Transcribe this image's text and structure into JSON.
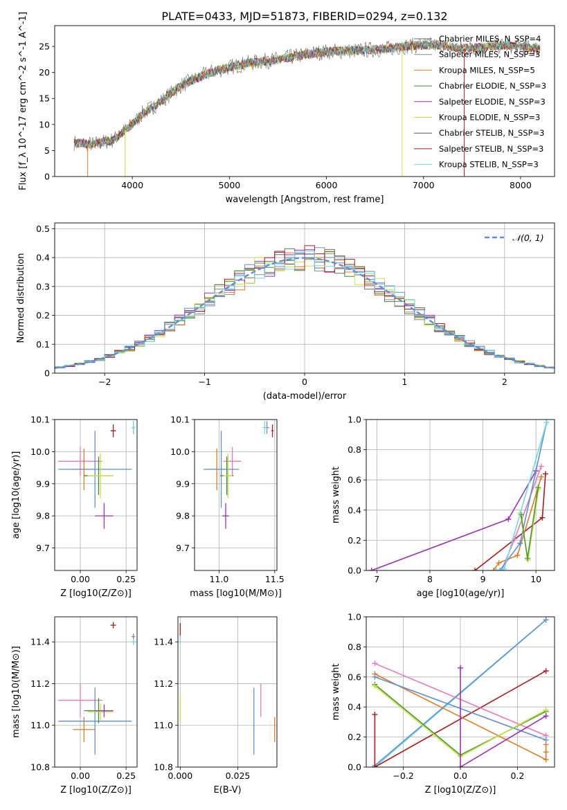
{
  "figure_title": "PLATE=0433, MJD=51873, FIBERID=0294, z=0.132",
  "colors": {
    "chabrier_miles": "#6a6a6a",
    "salpeter_miles": "#8a8a8a",
    "kroupa_miles": "#e07a20",
    "chabrier_elodie": "#3b8a3b",
    "salpeter_elodie": "#9a2fb0",
    "kroupa_elodie": "#c8e040",
    "chabrier_stelib": "#555555",
    "salpeter_stelib": "#b01818",
    "kroupa_stelib": "#70d8e0",
    "normal_curve": "#5b8fd8",
    "extra_blue": "#5b8fd8",
    "extra_pink": "#e878b8",
    "extra_green": "#4a9a38"
  },
  "chart_data": [
    {
      "id": "spectrum",
      "type": "line",
      "xlabel": "wavelength [Angstrom, rest frame]",
      "ylabel": "Flux [f_λ 10^-17 erg cm^-2 s^-1 A^-1]",
      "xlim": [
        3200,
        8350
      ],
      "ylim": [
        0,
        29
      ],
      "xticks": [
        4000,
        5000,
        6000,
        7000,
        8000
      ],
      "yticks": [
        0,
        5,
        10,
        15,
        20,
        25
      ],
      "grid": false,
      "legend_position": "upper right",
      "series": [
        {
          "name": "Chabrier MILES, N_SSP=4"
        },
        {
          "name": "Salpeter MILES, N_SSP=3"
        },
        {
          "name": "Kroupa MILES, N_SSP=5"
        },
        {
          "name": "Chabrier ELODIE, N_SSP=3"
        },
        {
          "name": "Salpeter ELODIE, N_SSP=3"
        },
        {
          "name": "Kroupa ELODIE, N_SSP=3"
        },
        {
          "name": "Chabrier STELIB, N_SSP=3"
        },
        {
          "name": "Salpeter STELIB, N_SSP=3"
        },
        {
          "name": "Kroupa STELIB, N_SSP=3"
        }
      ],
      "continuum": {
        "x": [
          3400,
          3600,
          3800,
          4000,
          4100,
          4300,
          4500,
          4800,
          5000,
          5200,
          5500,
          5800,
          6000,
          6300,
          6600,
          6800,
          7000,
          7200,
          7400,
          7600,
          7800,
          8000,
          8200
        ],
        "y": [
          6.5,
          6.2,
          7.0,
          10.0,
          12.0,
          14.5,
          17.5,
          20.0,
          21.0,
          21.8,
          22.5,
          23.5,
          24.0,
          24.2,
          24.5,
          25.0,
          25.3,
          25.2,
          24.6,
          24.8,
          25.2,
          25.0,
          24.5
        ]
      },
      "x_range": [
        3400,
        8200
      ]
    },
    {
      "id": "residual_histogram",
      "type": "step",
      "xlabel": "(data-model)/error",
      "ylabel": "Normed distribution",
      "xlim": [
        -2.5,
        2.5
      ],
      "ylim": [
        0,
        0.52
      ],
      "xticks": [
        -2,
        -1,
        0,
        1,
        2
      ],
      "yticks": [
        0.0,
        0.1,
        0.2,
        0.3,
        0.4,
        0.5
      ],
      "grid": true,
      "legend_position": "upper right",
      "legend": "𝒩(0, 1)",
      "bin_width": 0.1,
      "bin_start": -2.5
    },
    {
      "id": "age_vs_Z",
      "type": "errorbar",
      "xlabel": "Z [log10(Z/Z⊙)]",
      "ylabel": "age  [log10(age/yr)]",
      "xlim": [
        -0.14,
        0.31
      ],
      "ylim": [
        9.63,
        10.1
      ],
      "xticks": [
        0.0,
        0.25
      ],
      "yticks": [
        9.7,
        9.8,
        9.9,
        10.0,
        10.1
      ],
      "grid": true,
      "points": [
        {
          "x": 0.29,
          "y": 10.075,
          "xerr": 0.01,
          "yerr": 0.02,
          "series": "Salpeter MILES"
        },
        {
          "x": 0.29,
          "y": 10.075,
          "xerr": 0.01,
          "yerr": 0.02,
          "series": "Kroupa STELIB"
        },
        {
          "x": 0.18,
          "y": 10.065,
          "xerr": 0.015,
          "yerr": 0.02,
          "series": "Salpeter STELIB"
        },
        {
          "x": 0.0,
          "y": 9.97,
          "xerr": 0.12,
          "yerr": 0.045,
          "series": "pink"
        },
        {
          "x": 0.02,
          "y": 9.945,
          "xerr": 0.06,
          "yerr": 0.065,
          "series": "Kroupa MILES"
        },
        {
          "x": 0.08,
          "y": 9.945,
          "xerr": 0.2,
          "yerr": 0.12,
          "series": "blue"
        },
        {
          "x": 0.1,
          "y": 9.925,
          "xerr": 0.08,
          "yerr": 0.06,
          "series": "Chabrier ELODIE"
        },
        {
          "x": 0.11,
          "y": 9.925,
          "xerr": 0.07,
          "yerr": 0.07,
          "series": "Kroupa ELODIE"
        },
        {
          "x": 0.13,
          "y": 9.8,
          "xerr": 0.05,
          "yerr": 0.04,
          "series": "Salpeter ELODIE"
        }
      ]
    },
    {
      "id": "age_vs_mass",
      "type": "errorbar",
      "xlabel": "mass [log10(M/M⊙)]",
      "ylabel": "",
      "xlim": [
        10.78,
        11.52
      ],
      "ylim": [
        9.63,
        10.1
      ],
      "xticks": [
        11.0,
        11.5
      ],
      "yticks": [
        9.7,
        9.8,
        9.9,
        10.0,
        10.1
      ],
      "grid": true,
      "points": [
        {
          "x": 11.43,
          "y": 10.075,
          "xerr": 0.02,
          "yerr": 0.02,
          "series": "Salpeter MILES"
        },
        {
          "x": 11.41,
          "y": 10.075,
          "xerr": 0.02,
          "yerr": 0.02,
          "series": "Kroupa STELIB"
        },
        {
          "x": 11.48,
          "y": 10.065,
          "xerr": 0.01,
          "yerr": 0.02,
          "series": "Salpeter STELIB"
        },
        {
          "x": 11.12,
          "y": 9.97,
          "xerr": 0.08,
          "yerr": 0.045,
          "series": "pink"
        },
        {
          "x": 10.98,
          "y": 9.945,
          "xerr": 0.08,
          "yerr": 0.065,
          "series": "Kroupa MILES"
        },
        {
          "x": 11.02,
          "y": 9.945,
          "xerr": 0.16,
          "yerr": 0.12,
          "series": "blue"
        },
        {
          "x": 11.07,
          "y": 9.925,
          "xerr": 0.06,
          "yerr": 0.06,
          "series": "Chabrier ELODIE"
        },
        {
          "x": 11.08,
          "y": 9.925,
          "xerr": 0.04,
          "yerr": 0.07,
          "series": "Kroupa ELODIE"
        },
        {
          "x": 11.06,
          "y": 9.8,
          "xerr": 0.03,
          "yerr": 0.04,
          "series": "Salpeter ELODIE"
        }
      ]
    },
    {
      "id": "massweight_vs_age",
      "type": "line",
      "xlabel": "age  [log10(age/yr)]",
      "ylabel": "mass weight",
      "xlim": [
        6.8,
        10.35
      ],
      "ylim": [
        0,
        1
      ],
      "xticks": [
        7,
        8,
        9,
        10
      ],
      "yticks": [
        0.0,
        0.2,
        0.4,
        0.6,
        0.8,
        1.0
      ],
      "grid": true,
      "series": [
        {
          "key": "salpeter_elodie",
          "x": [
            6.9,
            9.48,
            10.0
          ],
          "y": [
            0.0,
            0.34,
            0.66
          ]
        },
        {
          "key": "salpeter_stelib",
          "x": [
            8.85,
            10.12,
            10.18
          ],
          "y": [
            0.0,
            0.35,
            0.64
          ]
        },
        {
          "key": "kroupa_miles",
          "x": [
            9.2,
            9.3,
            9.65,
            10.1
          ],
          "y": [
            0.0,
            0.05,
            0.1,
            0.62
          ]
        },
        {
          "key": "extra_pink",
          "x": [
            9.35,
            9.6,
            10.1
          ],
          "y": [
            0.0,
            0.21,
            0.69
          ]
        },
        {
          "key": "extra_blue",
          "x": [
            9.32,
            9.7,
            10.2
          ],
          "y": [
            0.0,
            0.18,
            0.98
          ]
        },
        {
          "key": "kroupa_elodie",
          "x": [
            9.7,
            9.85,
            10.05
          ],
          "y": [
            0.38,
            0.07,
            0.54
          ]
        },
        {
          "key": "extra_green",
          "x": [
            9.72,
            9.84,
            10.04
          ],
          "y": [
            0.37,
            0.08,
            0.55
          ]
        },
        {
          "key": "kroupa_stelib",
          "x": [
            9.25,
            9.4,
            10.2
          ],
          "y": [
            0.0,
            0.01,
            0.98
          ]
        }
      ]
    },
    {
      "id": "mass_vs_Z",
      "type": "errorbar",
      "xlabel": "Z [log10(Z/Z⊙)]",
      "ylabel": "mass [log10(M/M⊙)]",
      "xlim": [
        -0.14,
        0.31
      ],
      "ylim": [
        10.8,
        11.52
      ],
      "xticks": [
        0.0,
        0.25
      ],
      "yticks": [
        10.8,
        11.0,
        11.2,
        11.4
      ],
      "grid": true,
      "points": [
        {
          "x": 0.29,
          "y": 11.425,
          "xerr": 0.01,
          "yerr": 0.015,
          "series": "Salpeter MILES"
        },
        {
          "x": 0.29,
          "y": 11.4,
          "xerr": 0.01,
          "yerr": 0.015,
          "series": "Kroupa STELIB"
        },
        {
          "x": 0.18,
          "y": 11.48,
          "xerr": 0.015,
          "yerr": 0.015,
          "series": "Salpeter STELIB"
        },
        {
          "x": 0.0,
          "y": 11.12,
          "xerr": 0.12,
          "yerr": 0.08,
          "series": "pink"
        },
        {
          "x": 0.02,
          "y": 10.98,
          "xerr": 0.06,
          "yerr": 0.06,
          "series": "Kroupa MILES"
        },
        {
          "x": 0.08,
          "y": 11.02,
          "xerr": 0.2,
          "yerr": 0.16,
          "series": "blue"
        },
        {
          "x": 0.1,
          "y": 11.07,
          "xerr": 0.08,
          "yerr": 0.06,
          "series": "Chabrier ELODIE"
        },
        {
          "x": 0.11,
          "y": 11.065,
          "xerr": 0.07,
          "yerr": 0.04,
          "series": "Kroupa ELODIE"
        },
        {
          "x": 0.13,
          "y": 11.07,
          "xerr": 0.05,
          "yerr": 0.03,
          "series": "Salpeter ELODIE"
        }
      ]
    },
    {
      "id": "mass_vs_ebv",
      "type": "errorbar",
      "xlabel": "E(B-V)",
      "ylabel": "",
      "xlim": [
        -0.001,
        0.042
      ],
      "ylim": [
        10.8,
        11.52
      ],
      "xticks": [
        0.0,
        0.025
      ],
      "xtick_labels": [
        "0.000",
        "0.025"
      ],
      "yticks": [
        10.8,
        11.0,
        11.2,
        11.4
      ],
      "grid": true,
      "points": [
        {
          "x": 0.0,
          "y": 11.46,
          "xerr": 0.0,
          "yerr": 0.03,
          "series": "Salpeter STELIB"
        },
        {
          "x": 0.0,
          "y": 11.41,
          "xerr": 0.0,
          "yerr": 0.02,
          "series": "Kroupa STELIB"
        },
        {
          "x": 0.0,
          "y": 11.08,
          "xerr": 0.0,
          "yerr": 0.07,
          "series": "Kroupa ELODIE"
        },
        {
          "x": 0.032,
          "y": 11.02,
          "xerr": 0.0,
          "yerr": 0.16,
          "series": "blue"
        },
        {
          "x": 0.035,
          "y": 11.12,
          "xerr": 0.0,
          "yerr": 0.08,
          "series": "pink"
        },
        {
          "x": 0.041,
          "y": 10.98,
          "xerr": 0.0,
          "yerr": 0.06,
          "series": "Kroupa MILES"
        }
      ]
    },
    {
      "id": "massweight_vs_Z",
      "type": "line",
      "xlabel": "Z [log10(Z/Z⊙)]",
      "ylabel": "mass weight",
      "xlim": [
        -0.33,
        0.33
      ],
      "ylim": [
        0,
        1
      ],
      "xticks": [
        -0.2,
        0.0,
        0.2
      ],
      "yticks": [
        0.0,
        0.2,
        0.4,
        0.6,
        0.8,
        1.0
      ],
      "grid": true,
      "series": [
        {
          "key": "kroupa_stelib",
          "x": [
            -0.3,
            0.3
          ],
          "y": [
            0.0,
            0.98
          ]
        },
        {
          "key": "extra_blue",
          "x": [
            -0.3,
            0.3
          ],
          "y": [
            0.01,
            0.98
          ]
        },
        {
          "key": "salpeter_stelib",
          "x": [
            -0.3,
            -0.3,
            0.3
          ],
          "y": [
            0.35,
            0.0,
            0.64
          ]
        },
        {
          "key": "extra_pink",
          "x": [
            -0.3,
            0.3
          ],
          "y": [
            0.69,
            0.21
          ]
        },
        {
          "key": "kroupa_miles",
          "x": [
            -0.3,
            0.3,
            0.3,
            0.3
          ],
          "y": [
            0.62,
            0.05,
            0.1,
            0.15
          ]
        },
        {
          "key": "extra_blue",
          "x": [
            -0.3,
            0.3
          ],
          "y": [
            0.6,
            0.18
          ]
        },
        {
          "key": "extra_green",
          "x": [
            -0.3,
            0.0,
            0.3
          ],
          "y": [
            0.55,
            0.08,
            0.37
          ]
        },
        {
          "key": "kroupa_elodie",
          "x": [
            -0.3,
            0.0,
            0.3
          ],
          "y": [
            0.54,
            0.07,
            0.38
          ]
        },
        {
          "key": "salpeter_elodie",
          "x": [
            0.0,
            0.0,
            0.3
          ],
          "y": [
            0.66,
            0.0,
            0.34
          ]
        }
      ]
    }
  ]
}
